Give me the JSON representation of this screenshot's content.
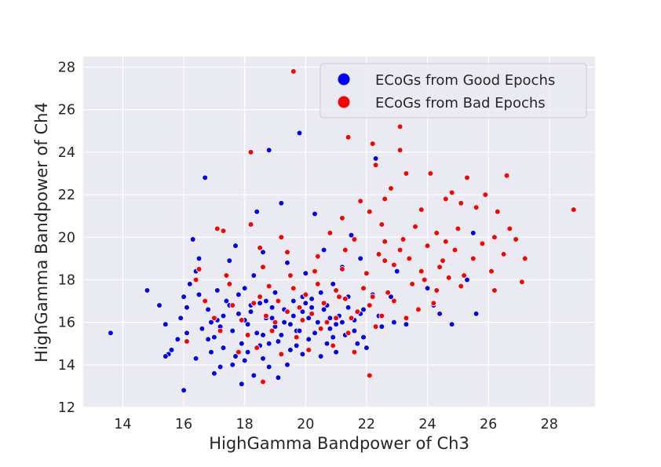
{
  "chart_data": {
    "type": "scatter",
    "xlabel": "HighGamma Bandpower of Ch3",
    "ylabel": "HighGamma Bandpower of Ch4",
    "xlim": [
      12.7,
      29.5
    ],
    "ylim": [
      12,
      28.5
    ],
    "x_ticks": [
      "14",
      "16",
      "18",
      "20",
      "22",
      "24",
      "26",
      "28"
    ],
    "y_ticks": [
      "12",
      "14",
      "16",
      "18",
      "20",
      "22",
      "24",
      "26",
      "28"
    ],
    "grid": true,
    "legend_position": "top-right",
    "background": "#eaeaf2",
    "series": [
      {
        "name": "ECoGs from Good Epochs",
        "color": "#0000ff",
        "points": [
          [
            13.6,
            15.5
          ],
          [
            14.8,
            17.5
          ],
          [
            15.2,
            16.8
          ],
          [
            15.4,
            15.9
          ],
          [
            15.5,
            14.5
          ],
          [
            15.6,
            14.7
          ],
          [
            15.4,
            14.4
          ],
          [
            15.8,
            15.2
          ],
          [
            15.9,
            16.2
          ],
          [
            16.0,
            17.2
          ],
          [
            16.1,
            16.7
          ],
          [
            16.0,
            12.8
          ],
          [
            16.1,
            15.5
          ],
          [
            16.2,
            17.8
          ],
          [
            16.3,
            19.9
          ],
          [
            16.4,
            18.4
          ],
          [
            16.5,
            17.3
          ],
          [
            16.5,
            19.0
          ],
          [
            16.6,
            15.7
          ],
          [
            16.7,
            22.8
          ],
          [
            16.8,
            16.6
          ],
          [
            16.9,
            14.6
          ],
          [
            17.0,
            15.3
          ],
          [
            17.1,
            16.1
          ],
          [
            17.2,
            13.9
          ],
          [
            17.3,
            14.8
          ],
          [
            17.4,
            17.0
          ],
          [
            17.5,
            18.9
          ],
          [
            17.6,
            15.6
          ],
          [
            17.7,
            19.6
          ],
          [
            17.8,
            16.4
          ],
          [
            17.9,
            13.1
          ],
          [
            18.0,
            14.2
          ],
          [
            18.0,
            17.6
          ],
          [
            18.1,
            15.9
          ],
          [
            18.2,
            16.8
          ],
          [
            18.3,
            18.2
          ],
          [
            18.4,
            21.2
          ],
          [
            18.5,
            14.9
          ],
          [
            18.6,
            15.4
          ],
          [
            18.6,
            19.3
          ],
          [
            18.7,
            16.2
          ],
          [
            18.8,
            24.1
          ],
          [
            18.8,
            13.9
          ],
          [
            18.9,
            16.7
          ],
          [
            19.0,
            17.4
          ],
          [
            19.1,
            15.1
          ],
          [
            19.2,
            21.6
          ],
          [
            19.3,
            16.0
          ],
          [
            19.4,
            18.8
          ],
          [
            19.5,
            14.7
          ],
          [
            19.6,
            17.0
          ],
          [
            19.7,
            15.6
          ],
          [
            19.8,
            24.9
          ],
          [
            19.9,
            16.5
          ],
          [
            20.0,
            18.3
          ],
          [
            20.1,
            15.2
          ],
          [
            20.2,
            17.1
          ],
          [
            20.3,
            21.1
          ],
          [
            20.4,
            16.0
          ],
          [
            20.5,
            14.4
          ],
          [
            20.6,
            19.4
          ],
          [
            20.7,
            16.8
          ],
          [
            20.8,
            15.7
          ],
          [
            20.9,
            17.8
          ],
          [
            21.0,
            14.6
          ],
          [
            21.1,
            16.3
          ],
          [
            21.2,
            18.6
          ],
          [
            21.3,
            15.4
          ],
          [
            21.4,
            17.2
          ],
          [
            21.5,
            20.1
          ],
          [
            21.6,
            16.1
          ],
          [
            21.7,
            15.0
          ],
          [
            21.8,
            19.0
          ],
          [
            21.9,
            16.6
          ],
          [
            22.0,
            14.8
          ],
          [
            22.2,
            17.3
          ],
          [
            22.3,
            23.7
          ],
          [
            22.4,
            16.3
          ],
          [
            22.5,
            15.8
          ],
          [
            22.8,
            17.2
          ],
          [
            22.9,
            16.0
          ],
          [
            23.0,
            18.4
          ],
          [
            23.3,
            15.9
          ],
          [
            23.5,
            17.8
          ],
          [
            24.0,
            17.6
          ],
          [
            24.2,
            16.8
          ],
          [
            24.4,
            16.4
          ],
          [
            24.8,
            15.9
          ],
          [
            25.3,
            18.0
          ],
          [
            25.5,
            20.2
          ],
          [
            25.6,
            16.4
          ],
          [
            16.4,
            14.3
          ],
          [
            17.0,
            13.6
          ],
          [
            17.6,
            14.0
          ],
          [
            18.3,
            13.5
          ],
          [
            19.1,
            13.4
          ],
          [
            19.4,
            14.0
          ],
          [
            17.3,
            16.3
          ],
          [
            17.8,
            17.3
          ],
          [
            18.2,
            16.5
          ],
          [
            18.9,
            16.2
          ],
          [
            19.6,
            16.3
          ],
          [
            20.1,
            16.2
          ],
          [
            20.6,
            16.6
          ],
          [
            21.2,
            16.0
          ],
          [
            16.8,
            15.2
          ],
          [
            17.2,
            15.8
          ],
          [
            17.9,
            15.0
          ],
          [
            18.4,
            15.5
          ],
          [
            19.0,
            15.8
          ],
          [
            19.8,
            15.6
          ],
          [
            20.3,
            15.5
          ],
          [
            21.0,
            15.9
          ],
          [
            18.0,
            16.1
          ],
          [
            18.7,
            17.0
          ],
          [
            19.3,
            16.6
          ],
          [
            20.0,
            16.9
          ],
          [
            20.5,
            17.4
          ],
          [
            21.4,
            16.7
          ],
          [
            17.5,
            16.8
          ],
          [
            18.5,
            16.9
          ],
          [
            19.2,
            15.4
          ],
          [
            19.9,
            17.2
          ],
          [
            20.8,
            16.2
          ],
          [
            21.6,
            15.6
          ],
          [
            17.1,
            17.5
          ],
          [
            18.8,
            15.0
          ],
          [
            19.5,
            15.9
          ],
          [
            20.2,
            16.7
          ],
          [
            20.9,
            15.3
          ],
          [
            21.8,
            16.4
          ],
          [
            16.9,
            16.0
          ],
          [
            18.1,
            14.6
          ],
          [
            19.7,
            14.9
          ],
          [
            20.7,
            15.0
          ],
          [
            21.9,
            15.3
          ],
          [
            17.7,
            14.4
          ],
          [
            18.6,
            14.3
          ],
          [
            19.9,
            14.5
          ]
        ]
      },
      {
        "name": "ECoGs from Bad Epochs",
        "color": "#ff0000",
        "points": [
          [
            19.6,
            27.8
          ],
          [
            23.1,
            25.2
          ],
          [
            21.4,
            24.7
          ],
          [
            23.1,
            24.1
          ],
          [
            22.2,
            24.4
          ],
          [
            18.2,
            24.0
          ],
          [
            22.3,
            23.4
          ],
          [
            24.1,
            23.0
          ],
          [
            26.6,
            22.9
          ],
          [
            23.3,
            23.0
          ],
          [
            25.3,
            22.8
          ],
          [
            22.8,
            22.3
          ],
          [
            24.8,
            22.1
          ],
          [
            24.6,
            21.8
          ],
          [
            25.1,
            21.6
          ],
          [
            25.9,
            22.0
          ],
          [
            28.8,
            21.3
          ],
          [
            21.8,
            21.7
          ],
          [
            22.1,
            21.2
          ],
          [
            22.6,
            21.8
          ],
          [
            23.8,
            21.3
          ],
          [
            25.6,
            21.4
          ],
          [
            26.3,
            21.2
          ],
          [
            21.2,
            20.9
          ],
          [
            22.5,
            20.6
          ],
          [
            23.6,
            20.5
          ],
          [
            24.3,
            20.2
          ],
          [
            25.0,
            20.4
          ],
          [
            26.7,
            20.4
          ],
          [
            17.1,
            20.4
          ],
          [
            17.3,
            20.3
          ],
          [
            18.2,
            20.6
          ],
          [
            19.2,
            20.0
          ],
          [
            20.8,
            20.2
          ],
          [
            21.6,
            19.9
          ],
          [
            22.6,
            19.8
          ],
          [
            23.2,
            19.9
          ],
          [
            24.0,
            19.6
          ],
          [
            24.9,
            19.4
          ],
          [
            25.8,
            19.7
          ],
          [
            26.2,
            20.0
          ],
          [
            26.9,
            19.9
          ],
          [
            18.5,
            19.5
          ],
          [
            19.4,
            19.3
          ],
          [
            20.4,
            19.1
          ],
          [
            21.3,
            19.4
          ],
          [
            22.4,
            19.2
          ],
          [
            23.4,
            19.0
          ],
          [
            24.5,
            18.9
          ],
          [
            25.5,
            19.0
          ],
          [
            26.5,
            19.2
          ],
          [
            27.2,
            19.0
          ],
          [
            16.5,
            18.5
          ],
          [
            17.4,
            18.2
          ],
          [
            18.6,
            18.6
          ],
          [
            19.5,
            18.2
          ],
          [
            20.3,
            18.4
          ],
          [
            21.2,
            18.5
          ],
          [
            22.0,
            18.3
          ],
          [
            22.9,
            18.7
          ],
          [
            23.8,
            18.4
          ],
          [
            24.4,
            18.6
          ],
          [
            25.2,
            18.2
          ],
          [
            26.1,
            18.4
          ],
          [
            27.1,
            17.9
          ],
          [
            16.4,
            18.0
          ],
          [
            17.5,
            17.8
          ],
          [
            18.8,
            17.7
          ],
          [
            19.6,
            17.6
          ],
          [
            20.4,
            17.8
          ],
          [
            21.0,
            17.5
          ],
          [
            21.9,
            17.6
          ],
          [
            22.7,
            17.4
          ],
          [
            23.5,
            17.8
          ],
          [
            24.3,
            17.5
          ],
          [
            25.1,
            17.7
          ],
          [
            26.2,
            17.5
          ],
          [
            16.7,
            17.0
          ],
          [
            17.6,
            16.8
          ],
          [
            18.3,
            16.9
          ],
          [
            19.1,
            17.0
          ],
          [
            19.8,
            16.7
          ],
          [
            20.6,
            16.9
          ],
          [
            21.3,
            17.1
          ],
          [
            22.1,
            16.8
          ],
          [
            22.9,
            17.0
          ],
          [
            23.7,
            16.6
          ],
          [
            24.2,
            16.9
          ],
          [
            17.0,
            16.2
          ],
          [
            17.9,
            16.1
          ],
          [
            18.7,
            16.3
          ],
          [
            19.4,
            16.5
          ],
          [
            20.2,
            16.4
          ],
          [
            21.0,
            16.2
          ],
          [
            21.7,
            16.5
          ],
          [
            22.5,
            16.3
          ],
          [
            23.3,
            16.2
          ],
          [
            16.1,
            15.1
          ],
          [
            17.2,
            15.6
          ],
          [
            18.1,
            15.4
          ],
          [
            18.9,
            15.6
          ],
          [
            19.7,
            15.3
          ],
          [
            20.5,
            15.7
          ],
          [
            21.4,
            15.5
          ],
          [
            22.3,
            15.8
          ],
          [
            17.8,
            14.6
          ],
          [
            18.4,
            14.8
          ],
          [
            19.2,
            14.5
          ],
          [
            20.1,
            14.7
          ],
          [
            20.9,
            14.9
          ],
          [
            21.6,
            14.6
          ],
          [
            18.6,
            13.2
          ],
          [
            22.1,
            13.5
          ],
          [
            19.0,
            16.0
          ],
          [
            19.9,
            16.1
          ],
          [
            20.7,
            16.0
          ],
          [
            21.5,
            16.2
          ],
          [
            18.5,
            17.2
          ],
          [
            20.0,
            17.3
          ],
          [
            21.1,
            17.2
          ],
          [
            22.2,
            17.2
          ],
          [
            23.9,
            18.0
          ],
          [
            24.7,
            18.1
          ],
          [
            22.6,
            18.9
          ],
          [
            23.1,
            19.4
          ],
          [
            24.6,
            19.8
          ]
        ]
      }
    ]
  }
}
